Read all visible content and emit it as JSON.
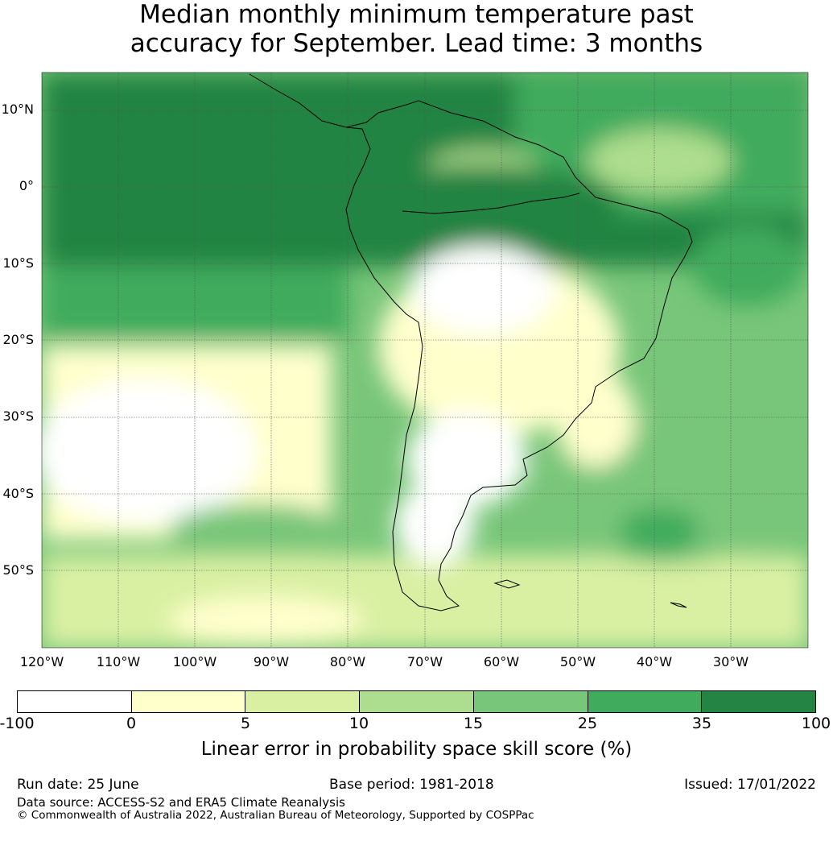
{
  "title": {
    "line1": "Median monthly minimum temperature past",
    "line2": "accuracy for September. Lead time: 3 months"
  },
  "map": {
    "region": "South America",
    "latitude_labels": [
      "10°N",
      "0°",
      "10°S",
      "20°S",
      "30°S",
      "40°S",
      "50°S"
    ],
    "longitude_labels": [
      "120°W",
      "110°W",
      "100°W",
      "90°W",
      "80°W",
      "70°W",
      "60°W",
      "50°W",
      "40°W",
      "30°W"
    ],
    "gridlines": true
  },
  "colorbar": {
    "ticks": [
      "-100",
      "0",
      "5",
      "10",
      "15",
      "25",
      "35",
      "100"
    ],
    "colors": [
      "#ffffff",
      "#ffffcc",
      "#d9f0a3",
      "#addd8e",
      "#78c679",
      "#41ab5d",
      "#238443"
    ],
    "label": "Linear error in probability space skill score (%)"
  },
  "footer": {
    "run_date": "Run date: 25 June",
    "base_period": "Base period: 1981-2018",
    "issued": "Issued: 17/01/2022",
    "data_source": "Data source: ACCESS-S2 and ERA5 Climate Reanalysis",
    "copyright": "© Commonwealth of Australia 2022, Australian Bureau of Meteorology, Supported by COSPPac"
  }
}
